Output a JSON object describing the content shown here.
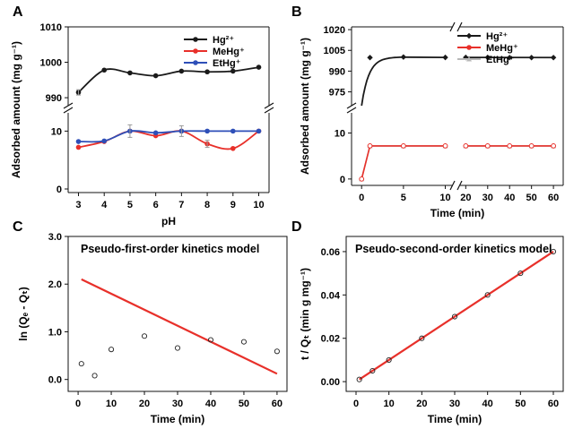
{
  "chart_data": [
    {
      "panel": "A",
      "type": "line",
      "xlabel": "pH",
      "ylabel": "Adsorbed amount (mg g⁻¹)",
      "x": [
        3,
        4,
        5,
        6,
        7,
        8,
        9,
        10
      ],
      "xticks": [
        "3",
        "4",
        "5",
        "6",
        "7",
        "8",
        "9",
        "10"
      ],
      "axis_break": true,
      "upper_segment": {
        "ylim": [
          988,
          1010
        ],
        "yticks": [
          "990",
          "1000",
          "1010"
        ]
      },
      "lower_segment": {
        "ylim": [
          0,
          13
        ],
        "yticks": [
          "0",
          "10"
        ]
      },
      "legend": "top-right",
      "series": [
        {
          "name": "Hg²⁺",
          "color": "#1a1a1a",
          "segment": "upper",
          "values": [
            991.5,
            997.8,
            997.0,
            996.2,
            997.5,
            997.3,
            997.5,
            998.6
          ]
        },
        {
          "name": "MeHg⁺",
          "color": "#e8302a",
          "segment": "lower",
          "values": [
            7.2,
            8.2,
            10.0,
            9.2,
            10.0,
            7.8,
            7.0,
            10.0
          ]
        },
        {
          "name": "EtHg⁺",
          "color": "#2e4fb8",
          "segment": "lower",
          "values": [
            8.2,
            8.3,
            10.0,
            9.7,
            10.0,
            10.0,
            10.0,
            10.0
          ]
        }
      ]
    },
    {
      "panel": "B",
      "type": "line",
      "xlabel": "Time (min)",
      "ylabel": "Adsorbed amount (mg g⁻¹)",
      "xticks": [
        "0",
        "5",
        "10",
        "20",
        "30",
        "40",
        "50",
        "60"
      ],
      "x_axis_break": true,
      "axis_break": true,
      "upper_segment": {
        "ylim": [
          965,
          1022
        ],
        "yticks": [
          "975",
          "990",
          "1005",
          "1020"
        ]
      },
      "lower_segment": {
        "ylim": [
          -1,
          14
        ],
        "yticks": [
          "0",
          "10"
        ]
      },
      "legend": "top-right",
      "series": [
        {
          "name": "Hg²⁺",
          "color": "#1a1a1a",
          "segment": "upper",
          "x": [
            1,
            5,
            10,
            20,
            30,
            40,
            50,
            60
          ],
          "values": [
            999.8,
            1000.2,
            999.9,
            999.9,
            999.9,
            999.8,
            999.8,
            999.8
          ]
        },
        {
          "name": "MeHg⁺",
          "color": "#e8302a",
          "segment": "lower",
          "x": [
            0,
            1,
            5,
            10,
            20,
            30,
            40,
            50,
            60
          ],
          "values": [
            0,
            7.2,
            7.2,
            7.2,
            7.2,
            7.2,
            7.2,
            7.2,
            7.2
          ]
        },
        {
          "name": "EtHg⁺",
          "color": "#b8b8b8",
          "segment": "lower",
          "x": [
            0,
            1,
            5,
            10,
            20,
            30,
            40,
            50,
            60
          ],
          "values": [
            0,
            7.2,
            7.2,
            7.2,
            7.2,
            7.2,
            7.2,
            7.2,
            7.2
          ]
        }
      ]
    },
    {
      "panel": "C",
      "type": "scatter",
      "title": "Pseudo-first-order kinetics model",
      "xlabel": "Time (min)",
      "ylabel": "ln (Qₑ - Qₜ)",
      "xlim": [
        -3,
        63
      ],
      "ylim": [
        -0.25,
        3.0
      ],
      "xticks": [
        "0",
        "10",
        "20",
        "30",
        "40",
        "50",
        "60"
      ],
      "yticks": [
        "0.0",
        "1.0",
        "2.0",
        "3.0"
      ],
      "points": {
        "x": [
          1,
          5,
          10,
          20,
          30,
          40,
          50,
          60
        ],
        "y": [
          0.33,
          0.08,
          0.63,
          0.91,
          0.66,
          0.83,
          0.79,
          0.59
        ]
      },
      "fit_line": {
        "color": "#e8302a",
        "x": [
          1,
          60
        ],
        "y": [
          2.1,
          0.12
        ]
      }
    },
    {
      "panel": "D",
      "type": "scatter",
      "title": "Pseudo-second-order kinetics model",
      "xlabel": "Time (min)",
      "ylabel": "t / Qₜ (min g mg⁻¹)",
      "xlim": [
        -3,
        63
      ],
      "ylim": [
        -0.0045,
        0.067
      ],
      "xticks": [
        "0",
        "10",
        "20",
        "30",
        "40",
        "50",
        "60"
      ],
      "yticks": [
        "0.00",
        "0.02",
        "0.04",
        "0.06"
      ],
      "points": {
        "x": [
          1,
          5,
          10,
          20,
          30,
          40,
          50,
          60
        ],
        "y": [
          0.001,
          0.005,
          0.01,
          0.02,
          0.03,
          0.04,
          0.05,
          0.06
        ]
      },
      "fit_line": {
        "color": "#e8302a",
        "x": [
          1,
          60
        ],
        "y": [
          0.001,
          0.06
        ]
      }
    }
  ]
}
